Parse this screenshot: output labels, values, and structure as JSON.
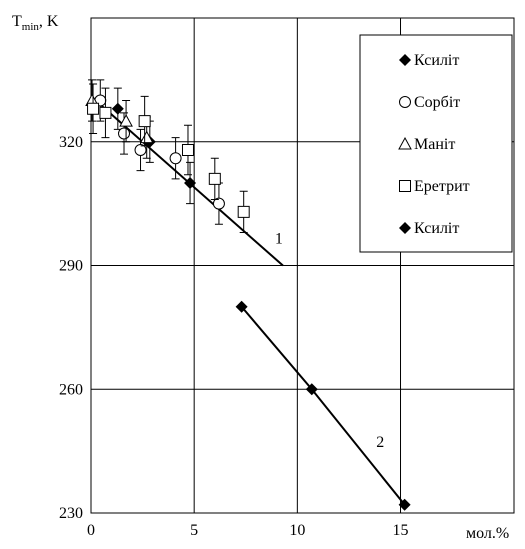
{
  "chart_data": {
    "type": "scatter",
    "ylabel": {
      "main": "T",
      "sub": "min",
      "rest": ", K"
    },
    "xlabel": "мол.%",
    "xlim": [
      0,
      20.5
    ],
    "ylim": [
      230,
      350
    ],
    "xticks": [
      0,
      5,
      10,
      15
    ],
    "yticks": [
      230,
      260,
      290,
      320
    ],
    "grid": true,
    "series": [
      {
        "name": "Ксиліт",
        "marker": "diamond",
        "color": "#000000",
        "x": [
          1.3,
          2.85,
          4.8
        ],
        "values": [
          328,
          320,
          310
        ],
        "errors": [
          5,
          5,
          5
        ]
      },
      {
        "name": "Сорбіт",
        "marker": "circle",
        "color": "#000000",
        "x": [
          0.45,
          1.6,
          2.4,
          4.1,
          6.2
        ],
        "values": [
          330,
          322,
          318,
          316,
          305
        ],
        "errors": [
          5,
          5,
          5,
          5,
          5
        ]
      },
      {
        "name": "Маніт",
        "marker": "triangle",
        "color": "#000000",
        "x": [
          0.05,
          1.7,
          2.7
        ],
        "values": [
          330,
          325,
          321
        ],
        "errors": [
          5,
          5,
          5
        ]
      },
      {
        "name": "Еретрит",
        "marker": "square",
        "color": "#000000",
        "x": [
          0.1,
          0.7,
          2.6,
          4.7,
          6.0,
          7.4
        ],
        "values": [
          328,
          327,
          325,
          318,
          311,
          303
        ],
        "errors": [
          6,
          6,
          6,
          6,
          5,
          5
        ]
      },
      {
        "name": "Ксиліт",
        "marker": "diamond",
        "color": "#000000",
        "x": [
          7.3,
          10.7,
          15.2
        ],
        "values": [
          280,
          260,
          232
        ],
        "line": true,
        "line_label": "2"
      }
    ],
    "fit_line": {
      "label": "1",
      "x": [
        0,
        9.3
      ],
      "values": [
        331,
        290
      ]
    }
  }
}
